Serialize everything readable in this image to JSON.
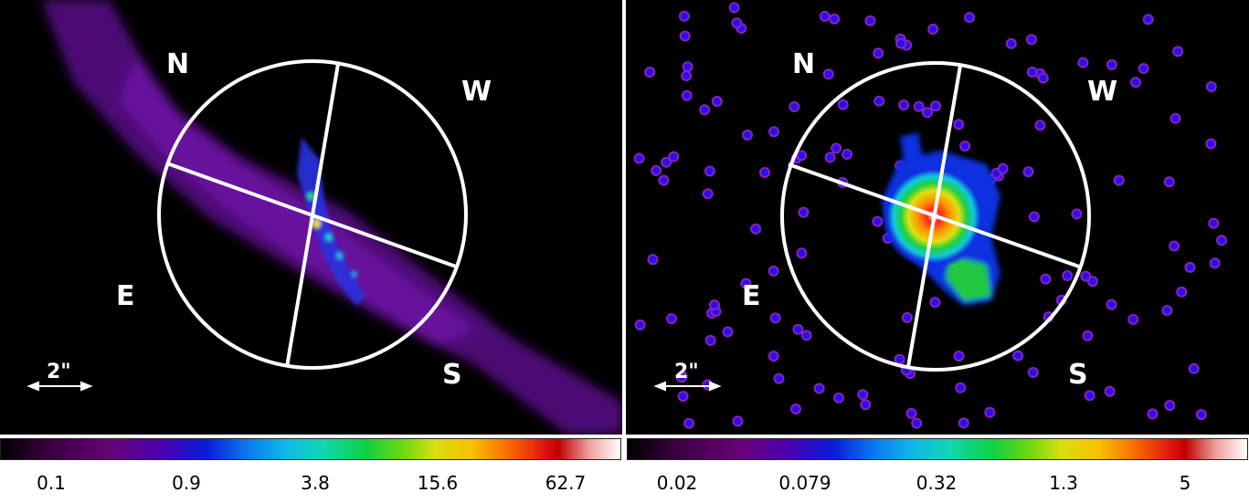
{
  "left_panel": {
    "directions": {
      "north": "N",
      "west": "W",
      "east": "E",
      "south": "S"
    },
    "scale_label": "2\"",
    "colorbar_ticks": [
      "0.1",
      "0.9",
      "3.8",
      "15.6",
      "62.7"
    ]
  },
  "right_panel": {
    "directions": {
      "north": "N",
      "west": "W",
      "east": "E",
      "south": "S"
    },
    "scale_label": "2\"",
    "colorbar_ticks": [
      "0.02",
      "0.079",
      "0.32",
      "1.3",
      "5"
    ]
  },
  "colors": {
    "background": "#000000",
    "overlay": "#ffffff",
    "nebula": "#7a10b0",
    "point_source": "#2a00ff"
  }
}
